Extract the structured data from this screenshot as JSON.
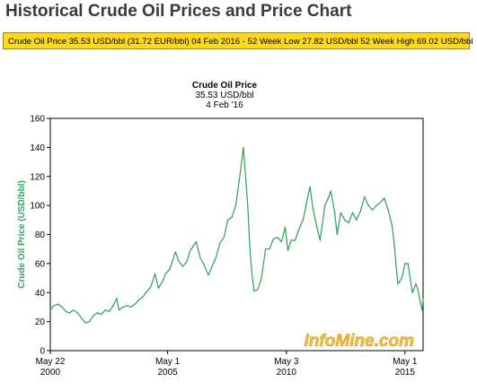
{
  "page": {
    "title": "Historical Crude Oil Prices and Price Chart",
    "ticker": "Crude Oil Price 35.53 USD/bbl (31.72 EUR/bbl) 04 Feb 2016 - 52 Week Low 27.82 USD/bbl 52 Week High 69.02 USD/bbl"
  },
  "chart_data": {
    "type": "line",
    "title": "Crude Oil Price",
    "subtitle_lines": [
      "35.53 USD/bbl",
      "4 Feb '16"
    ],
    "ylabel": "Crude Oil Price (USD/bbl)",
    "xlabel": "",
    "ylim": [
      0,
      160
    ],
    "yticks": [
      0,
      20,
      40,
      60,
      80,
      100,
      120,
      140,
      160
    ],
    "xlim": [
      "2000-05-22",
      "2016-02-04"
    ],
    "xticks": [
      {
        "date": "2000-05-22",
        "line1": "May 22",
        "line2": "2000"
      },
      {
        "date": "2005-05-01",
        "line1": "May 1",
        "line2": "2005"
      },
      {
        "date": "2010-05-03",
        "line1": "May 3",
        "line2": "2010"
      },
      {
        "date": "2015-05-01",
        "line1": "May 1",
        "line2": "2015"
      }
    ],
    "grid": false,
    "line_color": "#2e9e5b",
    "watermark": "InfoMine.com",
    "series": [
      {
        "x": [
          "2000-05-22",
          "2000-07-15",
          "2000-09-20",
          "2000-11-20",
          "2001-01-15",
          "2001-03-15",
          "2001-05-15",
          "2001-07-15",
          "2001-09-20",
          "2001-11-15",
          "2002-01-15",
          "2002-03-15",
          "2002-05-15",
          "2002-07-15",
          "2002-09-15",
          "2002-11-15",
          "2003-01-15",
          "2003-03-10",
          "2003-04-15",
          "2003-06-15",
          "2003-08-15",
          "2003-10-15",
          "2003-12-15",
          "2004-02-15",
          "2004-04-15",
          "2004-06-01",
          "2004-08-15",
          "2004-10-20",
          "2004-12-10",
          "2005-02-15",
          "2005-04-01",
          "2005-06-01",
          "2005-08-30",
          "2005-10-15",
          "2005-12-15",
          "2006-02-15",
          "2006-04-15",
          "2006-07-15",
          "2006-09-15",
          "2006-11-15",
          "2007-01-18",
          "2007-03-15",
          "2007-05-15",
          "2007-07-15",
          "2007-09-15",
          "2007-11-15",
          "2008-01-15",
          "2008-03-15",
          "2008-05-15",
          "2008-07-11",
          "2008-08-15",
          "2008-09-15",
          "2008-10-15",
          "2008-11-20",
          "2008-12-22",
          "2009-02-15",
          "2009-04-15",
          "2009-06-15",
          "2009-08-15",
          "2009-10-15",
          "2009-12-15",
          "2010-02-15",
          "2010-04-15",
          "2010-05-25",
          "2010-07-15",
          "2010-09-15",
          "2010-11-15",
          "2011-01-15",
          "2011-03-01",
          "2011-04-29",
          "2011-06-15",
          "2011-08-15",
          "2011-10-04",
          "2011-12-15",
          "2012-02-15",
          "2012-03-15",
          "2012-05-15",
          "2012-06-21",
          "2012-08-15",
          "2012-10-15",
          "2012-12-15",
          "2013-02-15",
          "2013-04-15",
          "2013-06-15",
          "2013-08-15",
          "2013-10-15",
          "2013-12-15",
          "2014-02-15",
          "2014-04-15",
          "2014-06-15",
          "2014-08-15",
          "2014-10-15",
          "2014-11-15",
          "2014-12-15",
          "2015-01-13",
          "2015-03-15",
          "2015-05-01",
          "2015-06-15",
          "2015-08-24",
          "2015-10-15",
          "2015-11-15",
          "2015-12-21",
          "2016-01-20",
          "2016-02-04"
        ],
        "values": [
          28,
          31,
          32,
          30,
          27,
          26,
          28,
          26,
          22,
          19,
          20,
          24,
          26,
          25,
          28,
          27,
          31,
          36,
          28,
          30,
          31,
          30,
          32,
          35,
          37,
          40,
          44,
          53,
          43,
          48,
          53,
          56,
          68,
          62,
          58,
          61,
          69,
          75,
          64,
          59,
          52,
          58,
          64,
          74,
          78,
          90,
          92,
          100,
          120,
          140,
          118,
          100,
          72,
          52,
          41,
          42,
          50,
          70,
          70,
          77,
          78,
          75,
          85,
          69,
          76,
          76,
          84,
          90,
          100,
          113,
          98,
          85,
          76,
          100,
          106,
          110,
          95,
          80,
          95,
          90,
          88,
          95,
          90,
          96,
          106,
          100,
          97,
          100,
          102,
          105,
          97,
          86,
          75,
          59,
          46,
          50,
          60,
          60,
          40,
          46,
          42,
          34,
          28,
          35.5
        ]
      }
    ]
  }
}
